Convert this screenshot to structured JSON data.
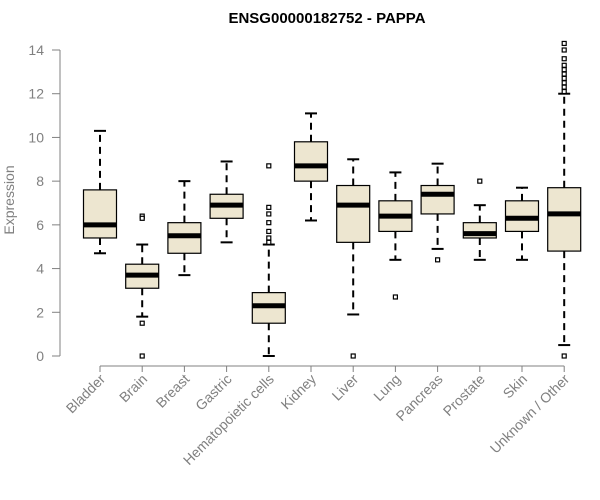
{
  "chart_data": {
    "type": "box",
    "title": "ENSG00000182752 - PAPPA",
    "xlabel": "",
    "ylabel": "Expression",
    "ylim": [
      0,
      14
    ],
    "yticks": [
      0,
      2,
      4,
      6,
      8,
      10,
      12,
      14
    ],
    "box_fill": "#ede6d0",
    "categories": [
      "Bladder",
      "Brain",
      "Breast",
      "Gastric",
      "Hematopoietic cells",
      "Kidney",
      "Liver",
      "Lung",
      "Pancreas",
      "Prostate",
      "Skin",
      "Unknown / Other"
    ],
    "boxes": [
      {
        "whisker_low": 4.7,
        "q1": 5.4,
        "median": 6.0,
        "q3": 7.6,
        "whisker_high": 10.3,
        "outliers": []
      },
      {
        "whisker_low": 1.8,
        "q1": 3.1,
        "median": 3.7,
        "q3": 4.2,
        "whisker_high": 5.1,
        "outliers": [
          6.4,
          6.3,
          1.5,
          0.0
        ]
      },
      {
        "whisker_low": 3.7,
        "q1": 4.7,
        "median": 5.5,
        "q3": 6.1,
        "whisker_high": 8.0,
        "outliers": []
      },
      {
        "whisker_low": 5.2,
        "q1": 6.3,
        "median": 6.9,
        "q3": 7.4,
        "whisker_high": 8.9,
        "outliers": []
      },
      {
        "whisker_low": 0.0,
        "q1": 1.5,
        "median": 2.3,
        "q3": 2.9,
        "whisker_high": 5.1,
        "outliers": [
          8.7,
          6.8,
          6.5,
          6.1,
          5.7,
          5.4,
          5.2
        ]
      },
      {
        "whisker_low": 6.2,
        "q1": 8.0,
        "median": 8.7,
        "q3": 9.8,
        "whisker_high": 11.1,
        "outliers": []
      },
      {
        "whisker_low": 1.9,
        "q1": 5.2,
        "median": 6.9,
        "q3": 7.8,
        "whisker_high": 9.0,
        "outliers": [
          0.0
        ]
      },
      {
        "whisker_low": 4.4,
        "q1": 5.7,
        "median": 6.4,
        "q3": 7.1,
        "whisker_high": 8.4,
        "outliers": [
          2.7
        ]
      },
      {
        "whisker_low": 4.9,
        "q1": 6.5,
        "median": 7.4,
        "q3": 7.8,
        "whisker_high": 8.8,
        "outliers": [
          4.4
        ]
      },
      {
        "whisker_low": 4.4,
        "q1": 5.4,
        "median": 5.6,
        "q3": 6.1,
        "whisker_high": 6.9,
        "outliers": [
          8.0
        ]
      },
      {
        "whisker_low": 4.4,
        "q1": 5.7,
        "median": 6.3,
        "q3": 7.1,
        "whisker_high": 7.7,
        "outliers": []
      },
      {
        "whisker_low": 0.5,
        "q1": 4.8,
        "median": 6.5,
        "q3": 7.7,
        "whisker_high": 12.0,
        "outliers": [
          14.3,
          14.0,
          13.6,
          13.3,
          13.1,
          12.9,
          12.7,
          12.5,
          12.3,
          12.1,
          0.0
        ]
      }
    ]
  }
}
